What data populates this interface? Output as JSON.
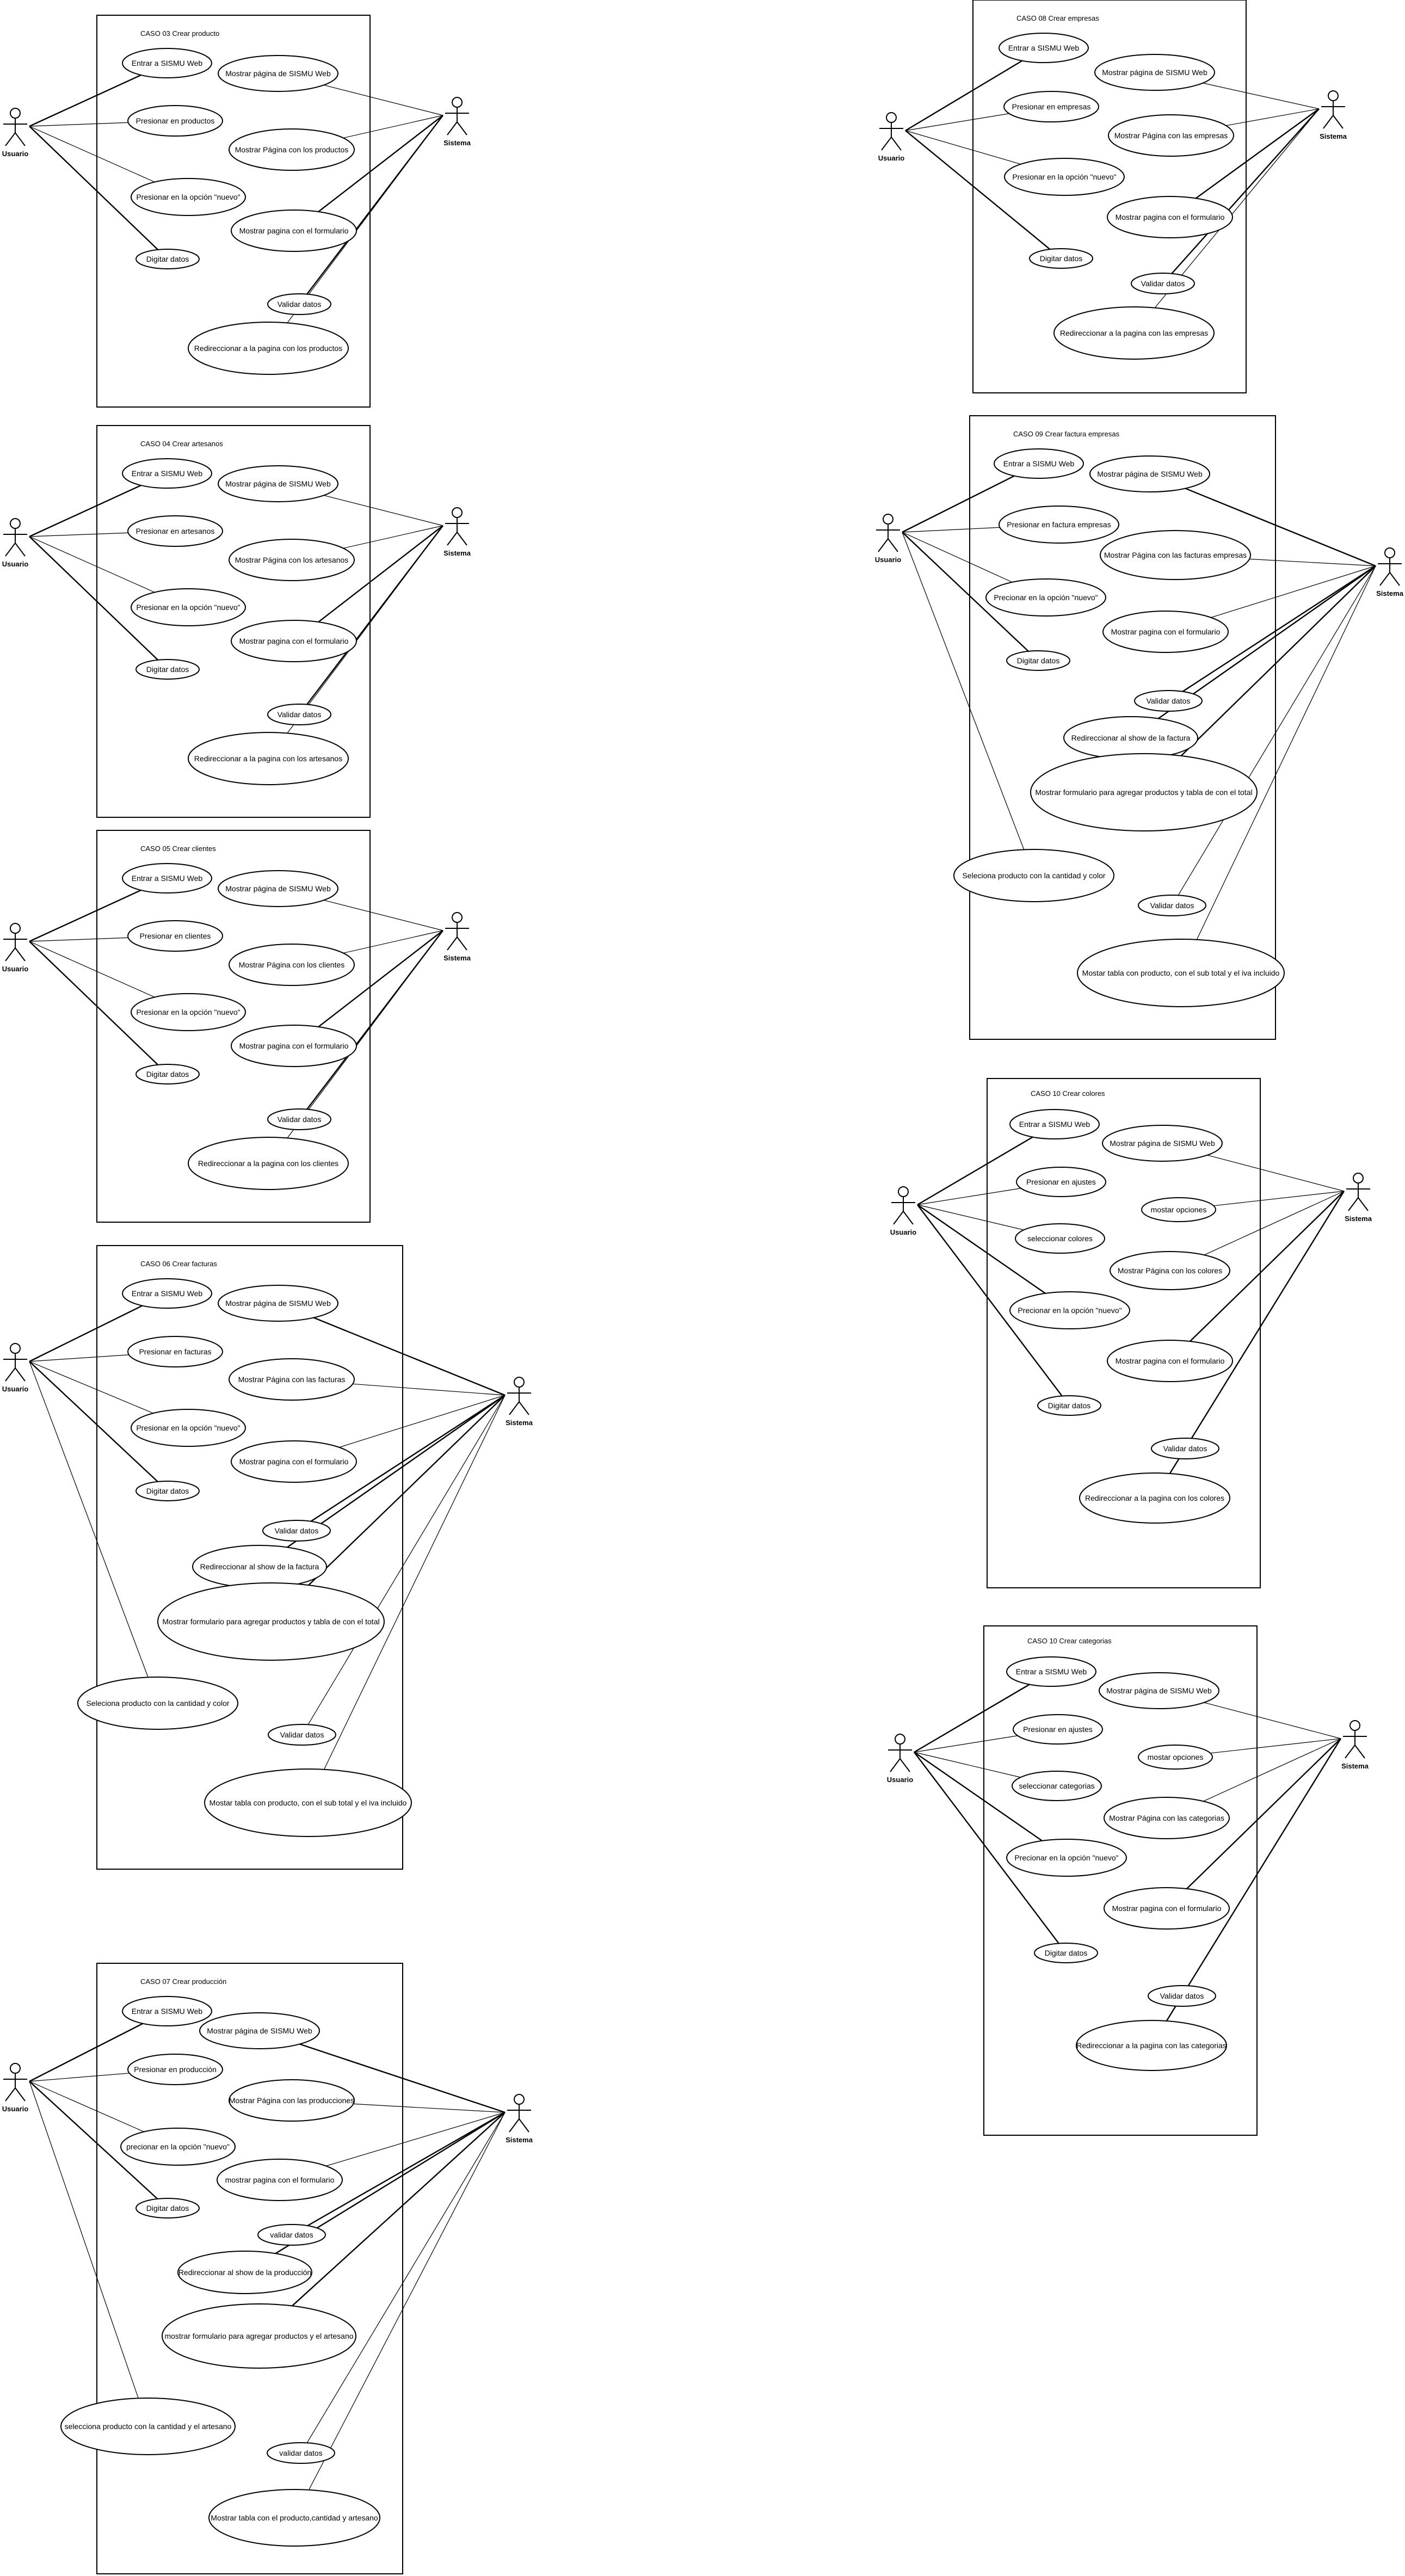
{
  "diagrams": [
    {
      "title": "CASO 03 Crear producto",
      "actors": [
        "Usuario",
        "Sistema"
      ],
      "use_cases": [
        "Entrar a SISMU Web",
        "Presionar en productos",
        "Presionar en la opción \"nuevo\"",
        "Digitar datos",
        "Mostrar página de SISMU Web",
        "Mostrar Página con los productos",
        "Mostrar pagina con el formulario",
        "Validar datos",
        "Redireccionar a la pagina con los productos"
      ]
    },
    {
      "title": "CASO 04 Crear artesanos",
      "actors": [
        "Usuario",
        "Sistema"
      ],
      "use_cases": [
        "Entrar a SISMU Web",
        "Presionar en artesanos",
        "Presionar en la opción \"nuevo\"",
        "Digitar datos",
        "Mostrar página de SISMU Web",
        "Mostrar Página con los artesanos",
        "Mostrar pagina con el formulario",
        "Validar datos",
        "Redireccionar a la pagina con los artesanos"
      ]
    },
    {
      "title": "CASO 05 Crear clientes",
      "actors": [
        "Usuario",
        "Sistema"
      ],
      "use_cases": [
        "Entrar a SISMU Web",
        "Presionar en clientes",
        "Presionar en la opción \"nuevo\"",
        "Digitar datos",
        "Mostrar página de SISMU Web",
        "Mostrar Página con los clientes",
        "Mostrar pagina con el formulario",
        "Validar datos",
        "Redireccionar a la pagina con los clientes"
      ]
    },
    {
      "title": "CASO 06 Crear facturas",
      "actors": [
        "Usuario",
        "Sistema"
      ],
      "use_cases": [
        "Entrar a SISMU Web",
        "Presionar en facturas",
        "Presionar en la opción \"nuevo\"",
        "Digitar datos",
        "Mostrar página de SISMU Web",
        "Mostrar Página con las facturas",
        "Mostrar pagina con el formulario",
        "Validar datos",
        "Redireccionar al show de la factura",
        "Mostrar formulario para agregar productos y tabla de con el total",
        "Seleciona producto con la cantidad y color",
        "Validar datos",
        "Mostar tabla con producto, con el sub total y el iva incluido"
      ]
    },
    {
      "title": "CASO 07 Crear producción",
      "actors": [
        "Usuario",
        "Sistema"
      ],
      "use_cases": [
        "Entrar a SISMU Web",
        "Presionar en producción",
        "precionar en la opción \"nuevo\"",
        "Digitar datos",
        "Mostrar página de SISMU Web",
        "Mostrar Página con las producciones",
        "mostrar pagina con el formulario",
        "validar datos",
        "Redireccionar al show de la producción",
        "mostrar formulario para agregar productos y el artesano",
        "selecciona producto con la cantidad y el artesano",
        "validar datos",
        "Mostrar tabla con el producto,cantidad y artesano"
      ]
    },
    {
      "title": "CASO 08 Crear empresas",
      "actors": [
        "Usuario",
        "Sistema"
      ],
      "use_cases": [
        "Entrar a SISMU Web",
        "Presionar en empresas",
        "Presionar en la opción \"nuevo\"",
        "Digitar datos",
        "Mostrar página de SISMU Web",
        "Mostrar Página con las empresas",
        "Mostrar pagina con el formulario",
        "Validar datos",
        "Redireccionar a la pagina con las empresas"
      ]
    },
    {
      "title": "CASO 09 Crear factura empresas",
      "actors": [
        "Usuario",
        "Sistema"
      ],
      "use_cases": [
        "Entrar a SISMU Web",
        "Presionar en factura empresas",
        "Precionar en la opción \"nuevo\"",
        "Digitar datos",
        "Mostrar página de SISMU Web",
        "Mostrar Página con las facturas empresas",
        "Mostrar pagina con el formulario",
        "Validar datos",
        "Redireccionar al show de la factura",
        "Mostrar formulario para agregar productos y tabla de con el total",
        "Seleciona producto con la cantidad y color",
        "Validar datos",
        "Mostar tabla con producto, con el sub total y el iva incluido"
      ]
    },
    {
      "title": "CASO 10 Crear colores",
      "actors": [
        "Usuario",
        "Sistema"
      ],
      "use_cases": [
        "Entrar a SISMU Web",
        "Presionar en ajustes",
        "seleccionar colores",
        "Precionar en la opción \"nuevo\"",
        "Digitar datos",
        "Mostrar página de SISMU Web",
        "mostar opciones",
        "Mostrar Página con los colores",
        "Mostrar pagina con el formulario",
        "Validar datos",
        "Redireccionar a la pagina con los colores"
      ]
    },
    {
      "title": "CASO 10 Crear categorias",
      "actors": [
        "Usuario",
        "Sistema"
      ],
      "use_cases": [
        "Entrar a SISMU Web",
        "Presionar en ajustes",
        "seleccionar categorias",
        "Precionar en la opción \"nuevo\"",
        "Digitar datos",
        "Mostrar página de SISMU Web",
        "mostar opciones",
        "Mostrar Página con las categorias",
        "Mostrar pagina con el formulario",
        "Validar datos",
        "Redireccionar a la pagina con las categorias"
      ]
    }
  ]
}
